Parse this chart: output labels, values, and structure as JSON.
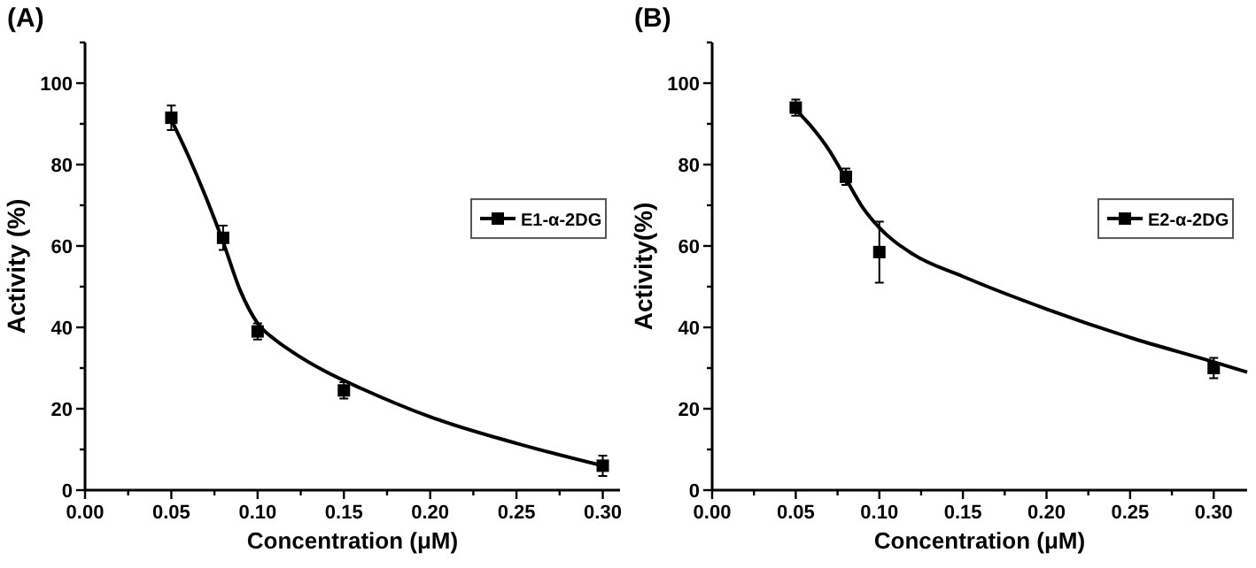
{
  "chart_data": [
    {
      "type": "scatter",
      "title": "(A)",
      "xlabel": "Concentration (μM)",
      "ylabel": "Activity (%)",
      "xlim": [
        0,
        0.31
      ],
      "ylim": [
        0,
        110
      ],
      "xticks": [
        {
          "value": 0,
          "label": "0.00"
        },
        {
          "value": 0.025,
          "label": null
        },
        {
          "value": 0.05,
          "label": "0.05"
        },
        {
          "value": 0.075,
          "label": null
        },
        {
          "value": 0.1,
          "label": "0.10"
        },
        {
          "value": 0.125,
          "label": null
        },
        {
          "value": 0.15,
          "label": "0.15"
        },
        {
          "value": 0.175,
          "label": null
        },
        {
          "value": 0.2,
          "label": "0.20"
        },
        {
          "value": 0.225,
          "label": null
        },
        {
          "value": 0.25,
          "label": "0.25"
        },
        {
          "value": 0.275,
          "label": null
        },
        {
          "value": 0.3,
          "label": "0.30"
        }
      ],
      "yticks": [
        0,
        {
          "value": 10,
          "label": null
        },
        20,
        {
          "value": 30,
          "label": null
        },
        40,
        {
          "value": 50,
          "label": null
        },
        60,
        {
          "value": 70,
          "label": null
        },
        80,
        {
          "value": 90,
          "label": null
        },
        100,
        {
          "value": 110,
          "label": null
        }
      ],
      "grid": false,
      "legend": "right",
      "series": [
        {
          "name": "E1-α-2DG",
          "marker": "square",
          "color": "#000000",
          "x": [
            0.05,
            0.08,
            0.1,
            0.15,
            0.3
          ],
          "values": [
            91.5,
            62,
            39,
            24.5,
            6
          ],
          "errors": [
            3,
            3,
            2,
            2,
            2.5
          ]
        },
        {
          "type": "line",
          "marker": "none",
          "line_style": "solid",
          "color": "#000000",
          "x": [
            0.05,
            0.06,
            0.07,
            0.08,
            0.09,
            0.1,
            0.11,
            0.12,
            0.14,
            0.16,
            0.2,
            0.25,
            0.3
          ],
          "values": [
            91,
            82,
            72,
            61,
            49,
            41,
            37,
            34,
            29,
            25,
            18,
            11.5,
            6
          ]
        }
      ]
    },
    {
      "type": "scatter",
      "title": "(B)",
      "xlabel": "Concentration (μM)",
      "ylabel": "Activity(%)",
      "xlim": [
        0,
        0.32
      ],
      "ylim": [
        0,
        110
      ],
      "xticks": [
        {
          "value": 0,
          "label": "0.00"
        },
        {
          "value": 0.025,
          "label": null
        },
        {
          "value": 0.05,
          "label": "0.05"
        },
        {
          "value": 0.075,
          "label": null
        },
        {
          "value": 0.1,
          "label": "0.10"
        },
        {
          "value": 0.125,
          "label": null
        },
        {
          "value": 0.15,
          "label": "0.15"
        },
        {
          "value": 0.175,
          "label": null
        },
        {
          "value": 0.2,
          "label": "0.20"
        },
        {
          "value": 0.225,
          "label": null
        },
        {
          "value": 0.25,
          "label": "0.25"
        },
        {
          "value": 0.275,
          "label": null
        },
        {
          "value": 0.3,
          "label": "0.30"
        }
      ],
      "yticks": [
        0,
        {
          "value": 10,
          "label": null
        },
        20,
        {
          "value": 30,
          "label": null
        },
        40,
        {
          "value": 50,
          "label": null
        },
        60,
        {
          "value": 70,
          "label": null
        },
        80,
        {
          "value": 90,
          "label": null
        },
        100,
        {
          "value": 110,
          "label": null
        }
      ],
      "grid": false,
      "legend": "right",
      "series": [
        {
          "name": "E2-α-2DG",
          "marker": "square",
          "color": "#000000",
          "x": [
            0.05,
            0.08,
            0.1,
            0.3
          ],
          "values": [
            94,
            77,
            58.5,
            30
          ],
          "errors": [
            2,
            2,
            7.5,
            2.5
          ]
        },
        {
          "type": "line",
          "marker": "none",
          "line_style": "solid",
          "color": "#000000",
          "x": [
            0.05,
            0.06,
            0.07,
            0.08,
            0.09,
            0.1,
            0.12,
            0.15,
            0.2,
            0.25,
            0.3,
            0.32
          ],
          "values": [
            93.5,
            89,
            83.5,
            76.5,
            69.5,
            64.5,
            58,
            52.5,
            44.5,
            37.5,
            31.5,
            29
          ]
        }
      ]
    }
  ]
}
